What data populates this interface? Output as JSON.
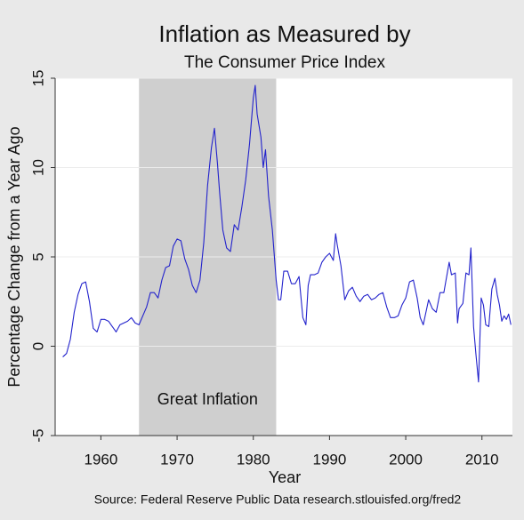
{
  "chart_data": {
    "type": "line",
    "title": "Inflation as Measured by",
    "subtitle": "The Consumer Price Index",
    "x_label": "Year",
    "y_label": "Percentage Change from a Year Ago",
    "source": "Source: Federal Reserve Public Data research.stlouisfed.org/fred2",
    "annotation": "Great Inflation",
    "shade": [
      1965,
      1983
    ],
    "shade_color": "#cfcfcf",
    "color": "#2222cc",
    "grid": true,
    "xlim": [
      1954,
      2014
    ],
    "xticks": [
      1960,
      1970,
      1980,
      1990,
      2000,
      2010
    ],
    "ylim": [
      -5,
      15
    ],
    "yticks": [
      -5,
      0,
      5,
      10,
      15
    ],
    "x": [
      1955.0,
      1955.5,
      1956.0,
      1956.5,
      1957.0,
      1957.5,
      1958.0,
      1958.5,
      1959.0,
      1959.5,
      1960.0,
      1960.5,
      1961.0,
      1961.5,
      1962.0,
      1962.5,
      1963.0,
      1963.5,
      1964.0,
      1964.5,
      1965.0,
      1965.5,
      1966.0,
      1966.5,
      1967.0,
      1967.5,
      1968.0,
      1968.5,
      1969.0,
      1969.5,
      1970.0,
      1970.5,
      1971.0,
      1971.5,
      1972.0,
      1972.5,
      1973.0,
      1973.5,
      1974.0,
      1974.5,
      1974.9,
      1975.3,
      1975.6,
      1976.0,
      1976.5,
      1977.0,
      1977.5,
      1978.0,
      1978.5,
      1979.0,
      1979.5,
      1980.0,
      1980.25,
      1980.5,
      1981.0,
      1981.3,
      1981.6,
      1982.0,
      1982.5,
      1983.0,
      1983.3,
      1983.6,
      1984.0,
      1984.5,
      1985.0,
      1985.5,
      1986.0,
      1986.5,
      1986.9,
      1987.2,
      1987.5,
      1988.0,
      1988.5,
      1989.0,
      1989.5,
      1990.0,
      1990.5,
      1990.8,
      1991.0,
      1991.5,
      1992.0,
      1992.5,
      1993.0,
      1993.5,
      1994.0,
      1994.5,
      1995.0,
      1995.5,
      1996.0,
      1996.5,
      1997.0,
      1997.5,
      1998.0,
      1998.5,
      1999.0,
      1999.5,
      2000.0,
      2000.5,
      2001.0,
      2001.5,
      2001.9,
      2002.3,
      2002.6,
      2003.0,
      2003.5,
      2004.0,
      2004.5,
      2005.0,
      2005.7,
      2006.0,
      2006.5,
      2006.8,
      2007.0,
      2007.5,
      2007.9,
      2008.3,
      2008.55,
      2008.9,
      2009.2,
      2009.55,
      2009.9,
      2010.2,
      2010.5,
      2010.9,
      2011.3,
      2011.7,
      2012.0,
      2012.3,
      2012.6,
      2012.9,
      2013.2,
      2013.5,
      2013.8
    ],
    "values": [
      -0.6,
      -0.4,
      0.4,
      1.9,
      2.9,
      3.5,
      3.6,
      2.5,
      1.0,
      0.8,
      1.5,
      1.5,
      1.4,
      1.1,
      0.8,
      1.2,
      1.3,
      1.4,
      1.6,
      1.3,
      1.2,
      1.7,
      2.2,
      3.0,
      3.0,
      2.7,
      3.7,
      4.4,
      4.5,
      5.6,
      6.0,
      5.9,
      4.9,
      4.3,
      3.4,
      3.0,
      3.7,
      5.8,
      9.0,
      11.1,
      12.2,
      10.2,
      8.5,
      6.5,
      5.5,
      5.3,
      6.8,
      6.5,
      7.8,
      9.3,
      11.3,
      13.9,
      14.6,
      13.0,
      11.7,
      10.0,
      11.0,
      8.4,
      6.5,
      3.7,
      2.6,
      2.6,
      4.2,
      4.2,
      3.5,
      3.5,
      3.9,
      1.6,
      1.2,
      3.4,
      4.0,
      4.0,
      4.1,
      4.7,
      5.0,
      5.2,
      4.8,
      6.3,
      5.7,
      4.5,
      2.6,
      3.1,
      3.3,
      2.8,
      2.5,
      2.8,
      2.9,
      2.6,
      2.7,
      2.9,
      3.0,
      2.2,
      1.6,
      1.6,
      1.7,
      2.3,
      2.7,
      3.6,
      3.7,
      2.7,
      1.6,
      1.2,
      1.8,
      2.6,
      2.1,
      1.9,
      3.0,
      3.0,
      4.7,
      4.0,
      4.1,
      1.3,
      2.1,
      2.4,
      4.1,
      4.0,
      5.5,
      1.1,
      -0.4,
      -2.0,
      2.7,
      2.3,
      1.2,
      1.1,
      3.2,
      3.8,
      2.9,
      2.3,
      1.4,
      1.7,
      1.5,
      1.8,
      1.2
    ]
  }
}
